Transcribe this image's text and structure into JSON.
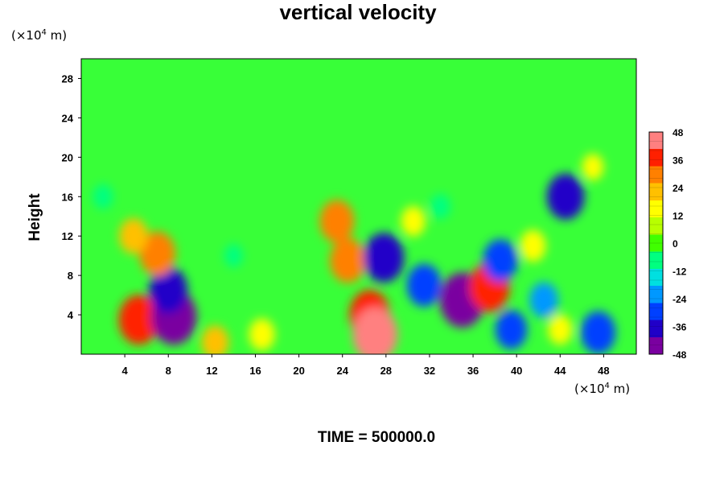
{
  "chart_data": {
    "type": "heatmap",
    "title": "vertical velocity",
    "ylabel": "Height",
    "x_unit": {
      "prefix": "(×10",
      "exp": "4",
      "suffix": " m)"
    },
    "y_unit": {
      "prefix": "(×10",
      "exp": "4",
      "suffix": " m)"
    },
    "xlim": [
      0,
      51
    ],
    "ylim": [
      0,
      30
    ],
    "x_ticks": [
      4,
      8,
      12,
      16,
      20,
      24,
      28,
      32,
      36,
      40,
      44,
      48
    ],
    "y_ticks": [
      4,
      8,
      12,
      16,
      20,
      24,
      28
    ],
    "colorbar": {
      "min": -48,
      "max": 48,
      "ticks": [
        48,
        36,
        24,
        12,
        0,
        -12,
        -24,
        -36,
        -48
      ],
      "colors": [
        "#7a00a0",
        "#2000c8",
        "#0040ff",
        "#0098ff",
        "#00e0e0",
        "#00ff80",
        "#40ff00",
        "#b8ff00",
        "#ffff00",
        "#ffc000",
        "#ff8000",
        "#ff2000",
        "#ff8080"
      ]
    },
    "field_regions": [
      {
        "x": 5.3,
        "y": 3.5,
        "value": 38
      },
      {
        "x": 8.5,
        "y": 3.8,
        "value": -45
      },
      {
        "x": 8.0,
        "y": 6.5,
        "value": -35
      },
      {
        "x": 7.0,
        "y": 10.2,
        "value": 32
      },
      {
        "x": 4.8,
        "y": 12.0,
        "value": 22
      },
      {
        "x": 24.5,
        "y": 9.5,
        "value": 32
      },
      {
        "x": 26.5,
        "y": 4.0,
        "value": 38
      },
      {
        "x": 27.0,
        "y": 2.0,
        "value": 44
      },
      {
        "x": 23.5,
        "y": 13.5,
        "value": 30
      },
      {
        "x": 27.8,
        "y": 9.8,
        "value": -38
      },
      {
        "x": 35.0,
        "y": 5.5,
        "value": -44
      },
      {
        "x": 31.5,
        "y": 7.0,
        "value": -30
      },
      {
        "x": 37.5,
        "y": 6.8,
        "value": 38
      },
      {
        "x": 38.5,
        "y": 9.5,
        "value": -30
      },
      {
        "x": 44.5,
        "y": 16.0,
        "value": -34
      },
      {
        "x": 39.5,
        "y": 2.5,
        "value": -26
      },
      {
        "x": 47.5,
        "y": 2.2,
        "value": -30
      },
      {
        "x": 42.5,
        "y": 5.5,
        "value": -22
      },
      {
        "x": 12.3,
        "y": 1.2,
        "value": 20
      },
      {
        "x": 16.6,
        "y": 2.0,
        "value": 18
      },
      {
        "x": 30.5,
        "y": 13.5,
        "value": 16
      },
      {
        "x": 41.5,
        "y": 11.0,
        "value": 18
      },
      {
        "x": 44.0,
        "y": 2.5,
        "value": 16
      },
      {
        "x": 47.0,
        "y": 19.0,
        "value": 12
      },
      {
        "x": 2.0,
        "y": 16.0,
        "value": -10
      },
      {
        "x": 14.0,
        "y": 10.0,
        "value": -8
      },
      {
        "x": 33.0,
        "y": 15.0,
        "value": -10
      }
    ]
  },
  "footer": {
    "time_label": "TIME = 500000.0"
  }
}
